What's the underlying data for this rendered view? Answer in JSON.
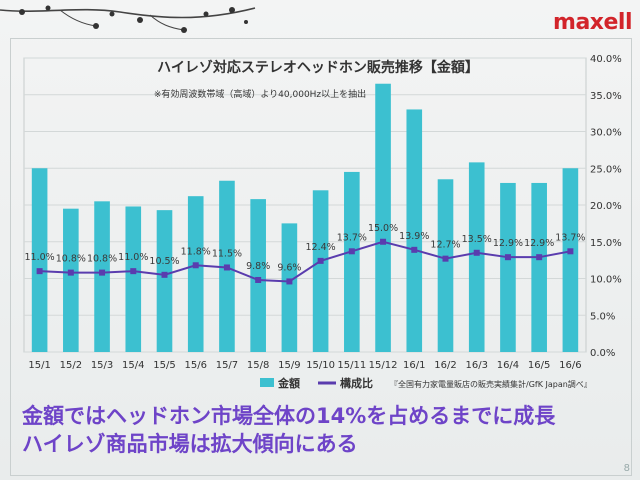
{
  "slide": {
    "logo": "maxell",
    "logo_tagline": "",
    "caption_line1": "金額ではヘッドホン市場全体の14%を占めるまでに成長",
    "caption_line2": "ハイレゾ商品市場は拡大傾向にある",
    "page_number": "8"
  },
  "chart_data": {
    "type": "bar",
    "title": "ハイレゾ対応ステレオヘッドホン販売推移【金額】",
    "subtitle": "※有効周波数帯域（高域）より40,000Hz以上を抽出",
    "source": "『全国有力家電量販店の販売実績集計/GfK Japan調べ』",
    "categories": [
      "15/1",
      "15/2",
      "15/3",
      "15/4",
      "15/5",
      "15/6",
      "15/7",
      "15/8",
      "15/9",
      "15/10",
      "15/11",
      "15/12",
      "16/1",
      "16/2",
      "16/3",
      "16/4",
      "16/5",
      "16/6"
    ],
    "series": [
      {
        "name": "金額",
        "type": "bar",
        "axis": "left",
        "color": "#3cc0d0",
        "values": [
          25,
          19.5,
          20.5,
          19.8,
          19.3,
          21.2,
          23.3,
          20.8,
          17.5,
          22,
          24.5,
          36.5,
          33,
          23.5,
          25.8,
          23,
          23,
          25
        ]
      },
      {
        "name": "構成比",
        "type": "line",
        "axis": "right",
        "color": "#5a3cae",
        "values": [
          11.0,
          10.8,
          10.8,
          11.0,
          10.5,
          11.8,
          11.5,
          9.8,
          9.6,
          12.4,
          13.7,
          15.0,
          13.9,
          12.7,
          13.5,
          12.9,
          12.9,
          13.7
        ],
        "labels": [
          "11.0%",
          "10.8%",
          "10.8%",
          "11.0%",
          "10.5%",
          "11.8%",
          "11.5%",
          "9.8%",
          "9.6%",
          "12.4%",
          "13.7%",
          "15.0%",
          "13.9%",
          "12.7%",
          "13.5%",
          "12.9%",
          "12.9%",
          "13.7%"
        ]
      }
    ],
    "ylim": [
      0,
      40
    ],
    "y2_ticks": [
      "0.0%",
      "5.0%",
      "10.0%",
      "15.0%",
      "20.0%",
      "25.0%",
      "30.0%",
      "35.0%",
      "40.0%"
    ],
    "y2lim": [
      0,
      40
    ],
    "grid": true,
    "legend_position": "bottom-left"
  }
}
